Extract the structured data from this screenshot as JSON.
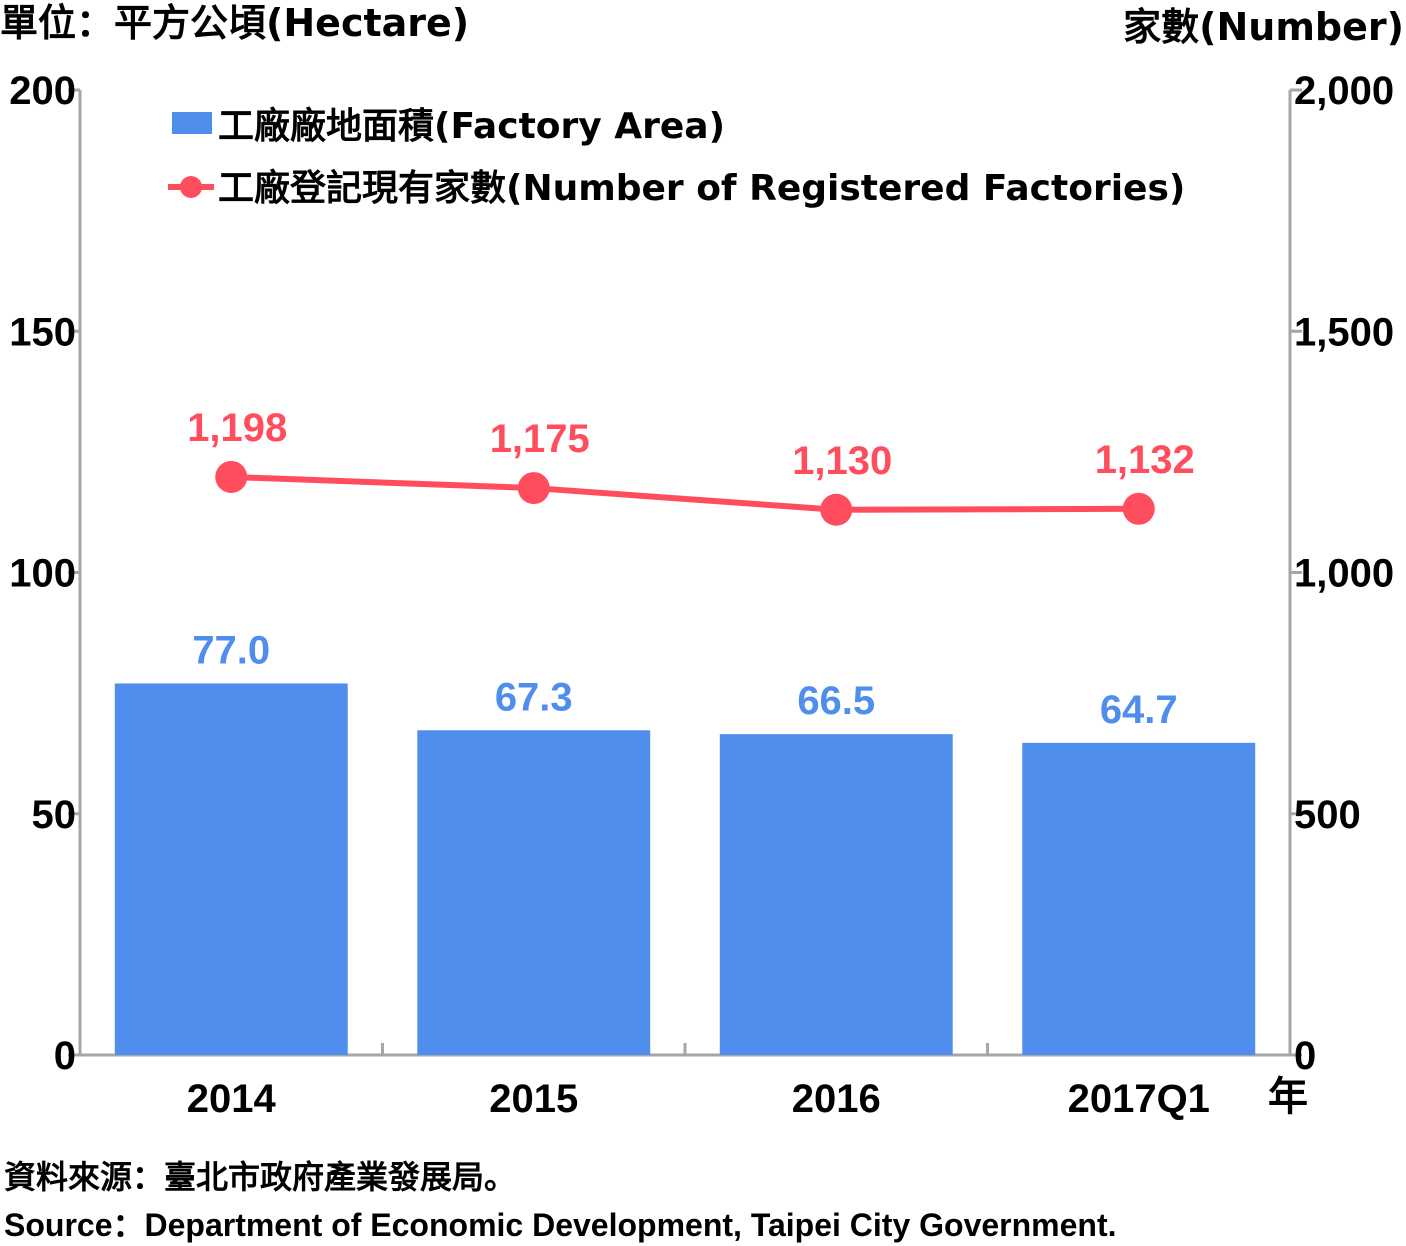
{
  "left_unit_label": "單位：平方公頃(Hectare)",
  "right_unit_label": "家數(Number)",
  "x_unit_label": "年",
  "source_zh": "資料來源：臺北市政府產業發展局。",
  "source_en": "Source：Department of Economic Development, Taipei City Government.",
  "colors": {
    "bar": "#4f8eed",
    "line": "#ff4d5e",
    "axis": "#a6a6a6"
  },
  "chart_data": {
    "type": "bar",
    "categories": [
      "2014",
      "2015",
      "2016",
      "2017Q1"
    ],
    "y_left": {
      "ylim": [
        0,
        200
      ],
      "ticks": [
        "0",
        "50",
        "100",
        "150",
        "200"
      ]
    },
    "y_right": {
      "ylim": [
        0,
        2000
      ],
      "ticks": [
        "0",
        "500",
        "1,000",
        "1,500",
        "2,000"
      ]
    },
    "grid": false,
    "legend_position": "top-left",
    "series": [
      {
        "name": "工廠廠地面積(Factory Area)",
        "type": "bar",
        "axis": "left",
        "values": [
          77.0,
          67.3,
          66.5,
          64.7
        ],
        "labels": [
          "77.0",
          "67.3",
          "66.5",
          "64.7"
        ]
      },
      {
        "name": "工廠登記現有家數(Number of Registered Factories)",
        "type": "line",
        "axis": "right",
        "values": [
          1198,
          1175,
          1130,
          1132
        ],
        "labels": [
          "1,198",
          "1,175",
          "1,130",
          "1,132"
        ]
      }
    ]
  }
}
